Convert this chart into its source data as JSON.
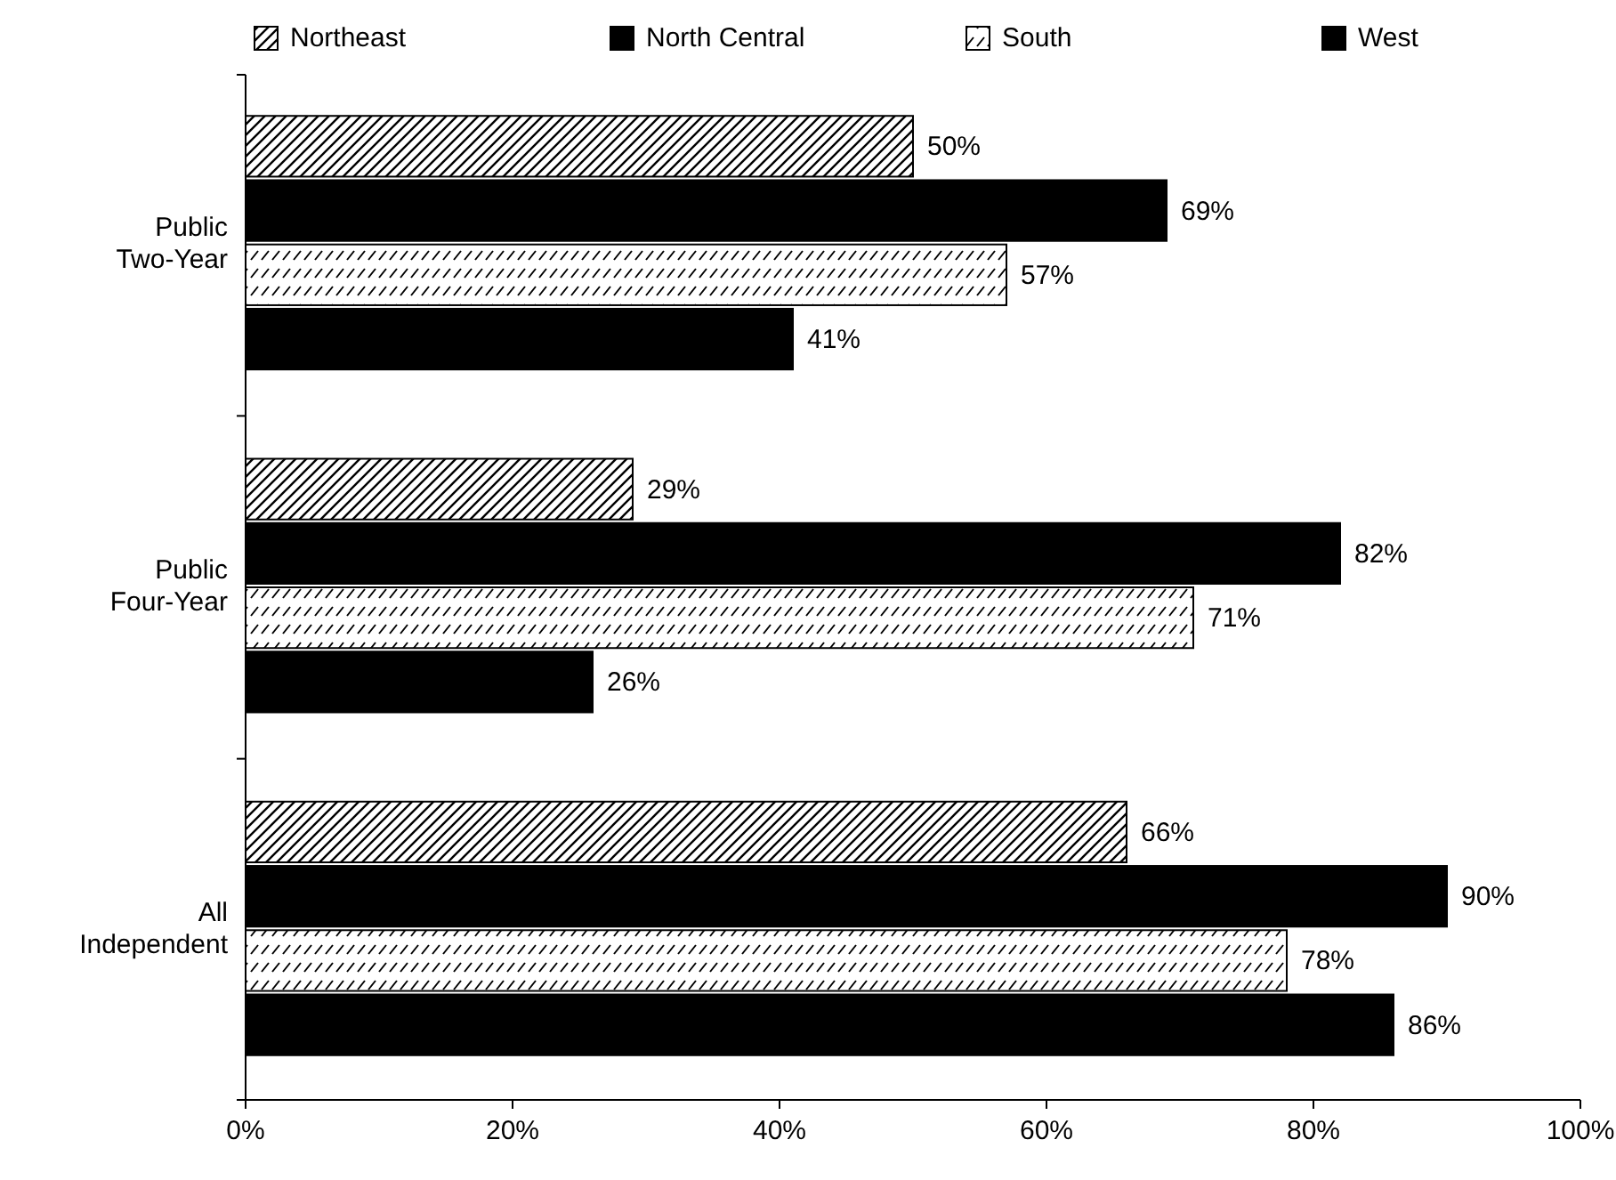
{
  "chart_data": {
    "type": "bar",
    "orientation": "horizontal",
    "categories": [
      "Public Two-Year",
      "Public Four-Year",
      "All Independent"
    ],
    "series": [
      {
        "name": "Northeast",
        "color": "#000000",
        "values": [
          50,
          29,
          66
        ],
        "value_labels": [
          "50%",
          "29%",
          "66%"
        ]
      },
      {
        "name": "North Central",
        "color": "#000000",
        "values": [
          69,
          82,
          90
        ],
        "value_labels": [
          "69%",
          "82%",
          "90%"
        ]
      },
      {
        "name": "South",
        "color": "#000000",
        "values": [
          57,
          71,
          78
        ],
        "value_labels": [
          "57%",
          "71%",
          "78%"
        ]
      },
      {
        "name": "West",
        "color": "#000000",
        "values": [
          41,
          26,
          86
        ],
        "value_labels": [
          "41%",
          "26%",
          "86%"
        ]
      }
    ],
    "xlim": [
      0,
      100
    ],
    "xticks": [
      {
        "value": 0,
        "label": "0%"
      },
      {
        "value": 20,
        "label": "20%"
      },
      {
        "value": 40,
        "label": "40%"
      },
      {
        "value": 60,
        "label": "60%"
      },
      {
        "value": 80,
        "label": "80%"
      },
      {
        "value": 100,
        "label": "100%"
      }
    ],
    "grid": false,
    "legend": "top"
  }
}
